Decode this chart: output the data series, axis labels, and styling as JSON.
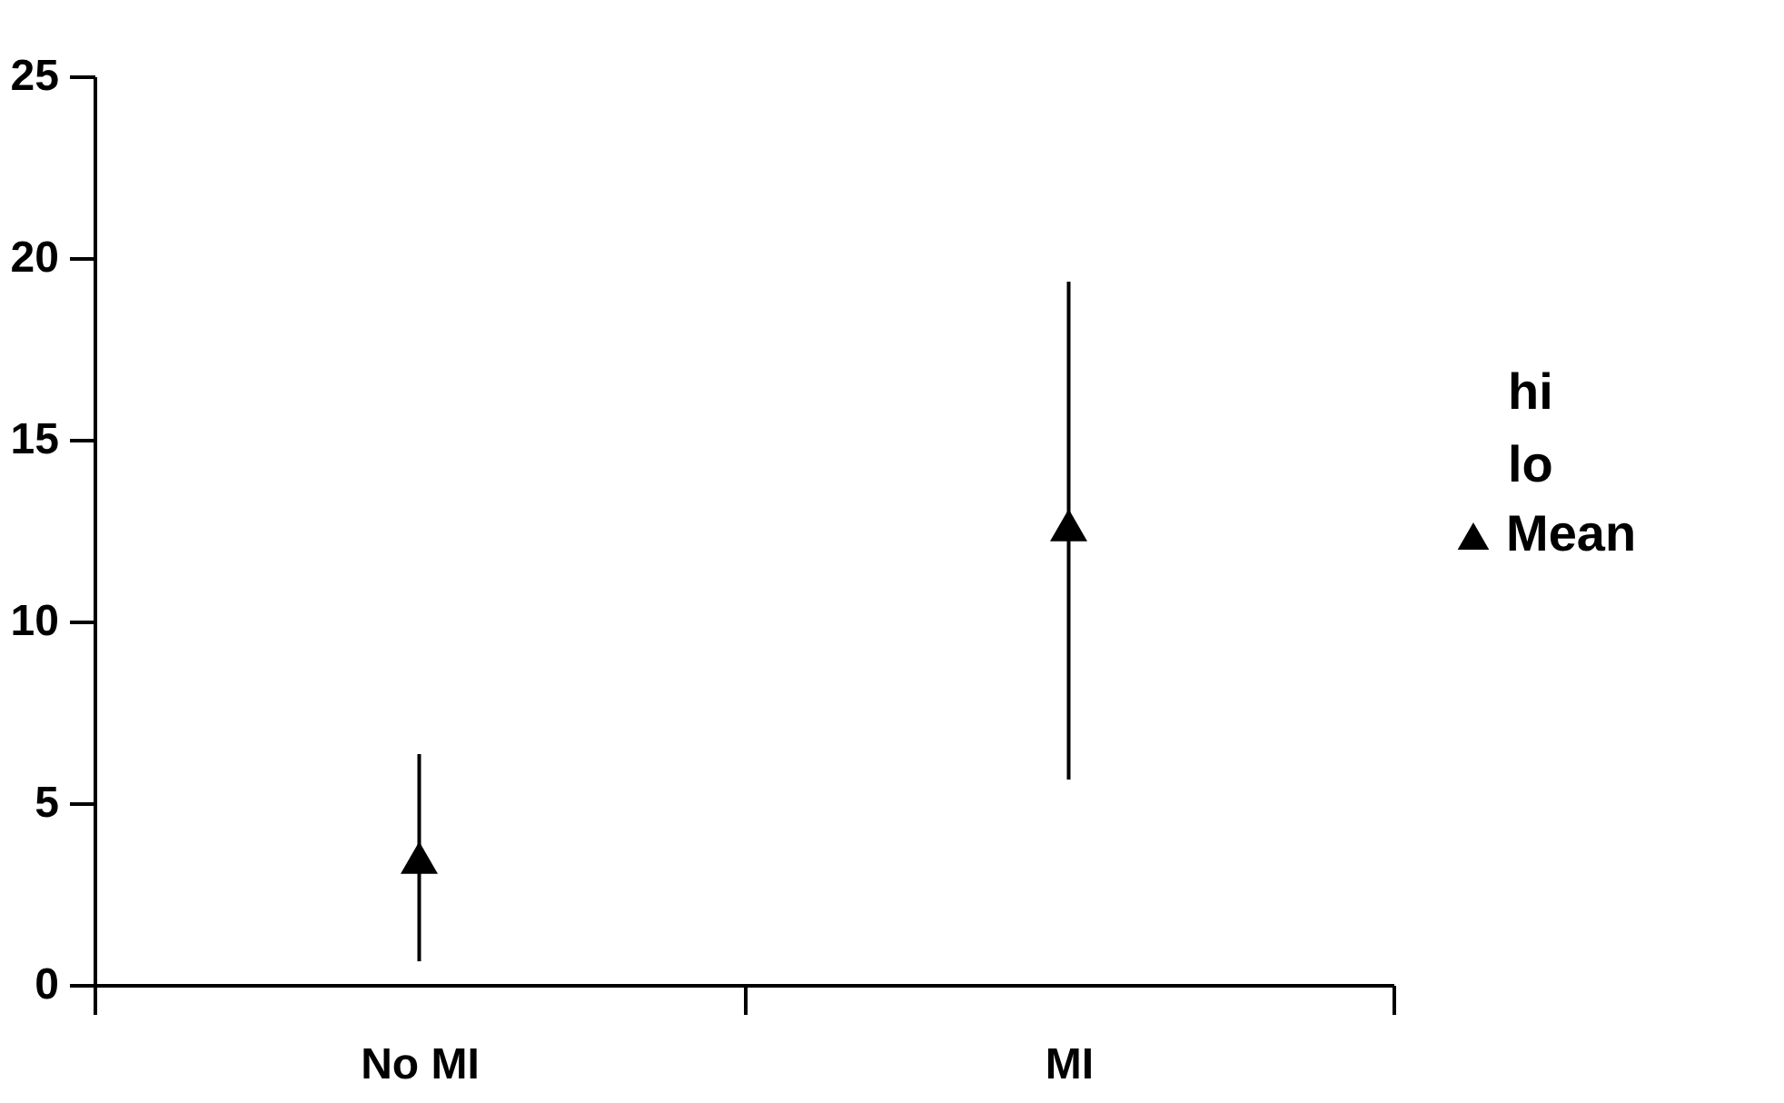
{
  "chart_data": {
    "type": "scatter",
    "categories": [
      "No MI",
      "MI"
    ],
    "series": [
      {
        "name": "Mean",
        "color": "#000000",
        "marker": "triangle",
        "values": [
          3.5,
          12.65
        ],
        "errors": [
          [
            0.65,
            6.35
          ],
          [
            5.65,
            19.35
          ]
        ]
      }
    ],
    "annotations": [
      "hi",
      "lo"
    ],
    "ylim": [
      0,
      25
    ],
    "yticks": [
      0,
      5,
      10,
      15,
      20,
      25
    ],
    "grid": false,
    "legend": "right"
  }
}
